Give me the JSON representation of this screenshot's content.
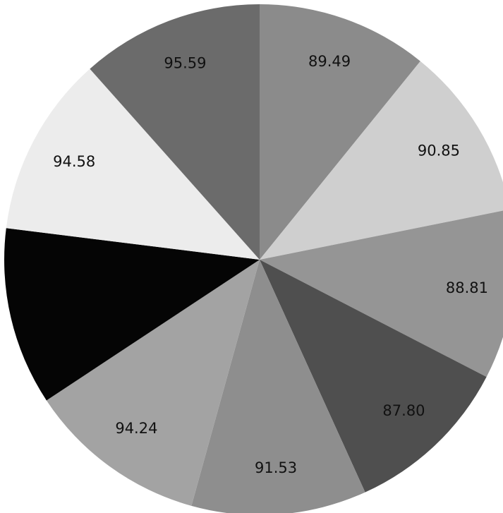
{
  "chart_data": {
    "type": "pie",
    "title": "",
    "start_angle_deg": 0,
    "direction": "clockwise",
    "values": [
      89.49,
      90.85,
      88.81,
      87.8,
      91.53,
      94.24,
      "",
      94.58,
      95.59
    ],
    "labels": [
      "89.49",
      "90.85",
      "88.81",
      "87.80",
      "91.53",
      "94.24",
      "",
      "94.58",
      "95.59"
    ],
    "slice_values": [
      89.49,
      90.85,
      88.81,
      87.8,
      91.53,
      94.24,
      93.0,
      94.58,
      95.59
    ],
    "colors": [
      "#8b8b8b",
      "#cfcfcf",
      "#959595",
      "#4f4f4f",
      "#8e8e8e",
      "#a3a3a3",
      "#050505",
      "#ececec",
      "#6b6b6b"
    ]
  }
}
